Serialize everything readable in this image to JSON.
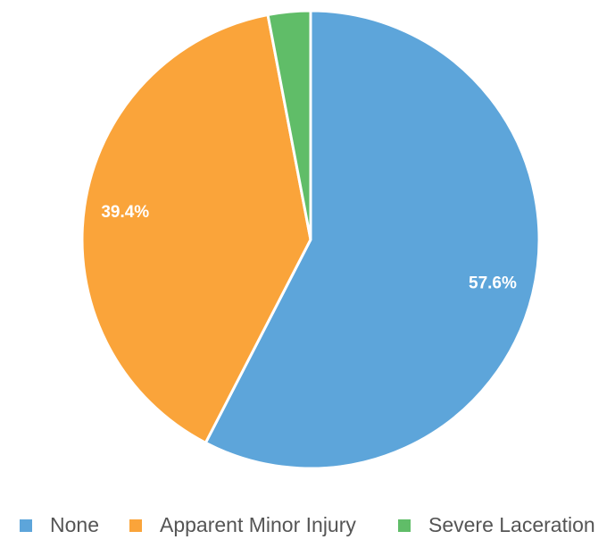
{
  "chart_data": {
    "type": "pie",
    "categories": [
      "None",
      "Apparent Minor Injury",
      "Severe Laceration"
    ],
    "values": [
      57.6,
      39.4,
      3.0
    ],
    "value_labels": [
      "57.6%",
      "39.4%",
      null
    ],
    "colors": [
      "#5da5da",
      "#faa43a",
      "#60bd68"
    ],
    "legend": "bottom"
  }
}
